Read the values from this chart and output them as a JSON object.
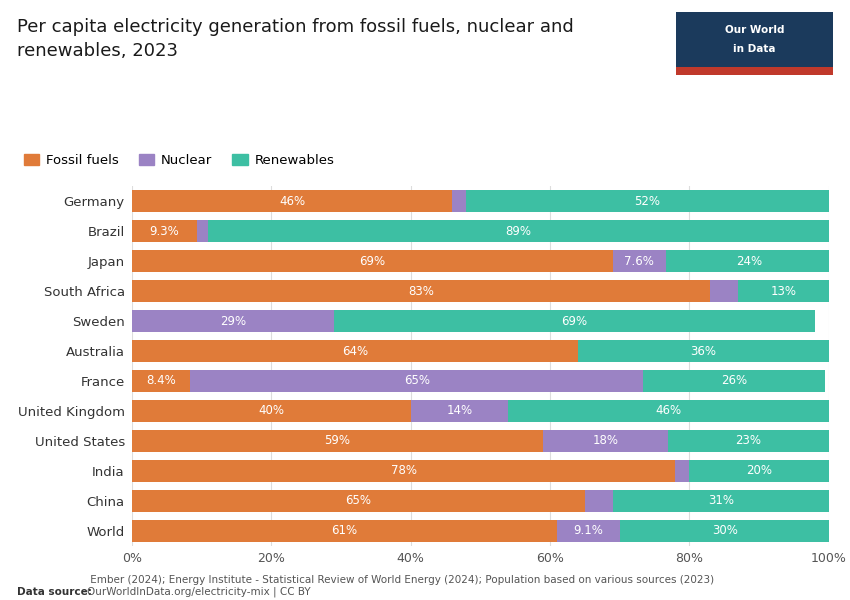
{
  "title": "Per capita electricity generation from fossil fuels, nuclear and\nrenewables, 2023",
  "countries": [
    "Germany",
    "Brazil",
    "Japan",
    "South Africa",
    "Sweden",
    "Australia",
    "France",
    "United Kingdom",
    "United States",
    "India",
    "China",
    "World"
  ],
  "fossil_fuels": [
    46,
    9.3,
    69,
    83,
    0,
    64,
    8.4,
    40,
    59,
    78,
    65,
    61
  ],
  "nuclear": [
    2,
    1.7,
    7.6,
    4,
    29,
    0,
    65,
    14,
    18,
    2,
    4,
    9.1
  ],
  "renewables": [
    52,
    89,
    24,
    13,
    69,
    36,
    26,
    46,
    23,
    20,
    31,
    30
  ],
  "fossil_labels": [
    "46%",
    "9.3%",
    "69%",
    "83%",
    "",
    "64%",
    "8.4%",
    "40%",
    "59%",
    "78%",
    "65%",
    "61%"
  ],
  "nuclear_labels": [
    "",
    "",
    "7.6%",
    "",
    "29%",
    "",
    "65%",
    "14%",
    "18%",
    "",
    "",
    "9.1%"
  ],
  "renewables_labels": [
    "52%",
    "89%",
    "24%",
    "13%",
    "69%",
    "36%",
    "26%",
    "46%",
    "23%",
    "20%",
    "31%",
    "30%"
  ],
  "fossil_color": "#E07B39",
  "nuclear_color": "#9B83C4",
  "renewables_color": "#3DBFA3",
  "background_color": "#FFFFFF",
  "text_color": "#333333",
  "data_source_bold": "Data source:",
  "data_source_normal": " Ember (2024); Energy Institute - Statistical Review of World Energy (2024); Population based on various sources (2023)\nOurWorldInData.org/electricity-mix | CC BY",
  "logo_bg": "#1B3A5C",
  "logo_red": "#C0392B"
}
